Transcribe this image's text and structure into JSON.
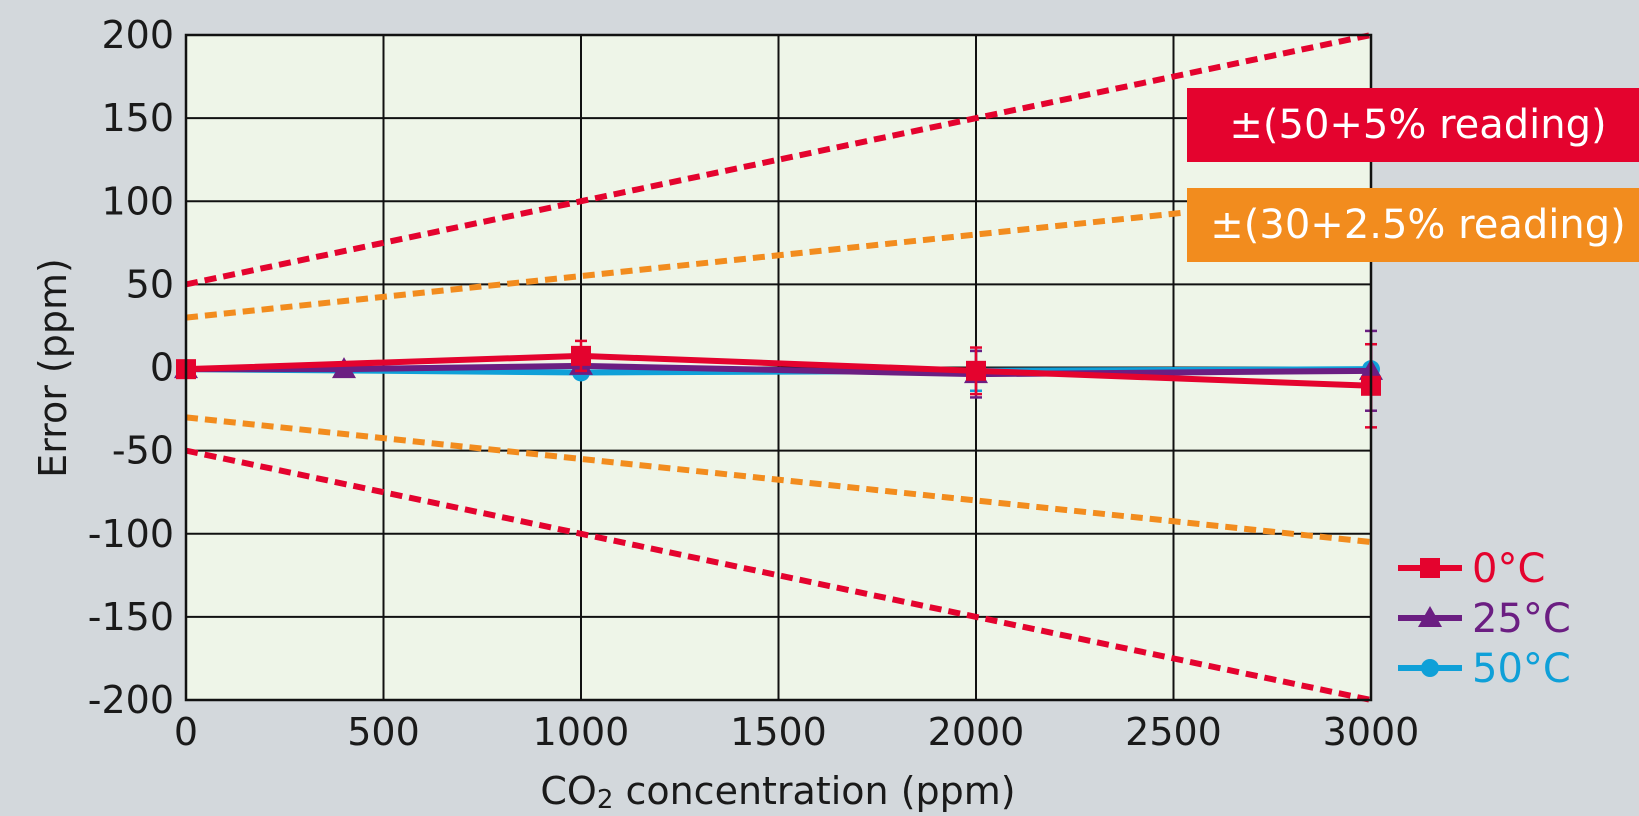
{
  "chart_data": {
    "type": "line",
    "xlabel_main": "CO",
    "xlabel_sub": "2",
    "xlabel_rest": " concentration (ppm)",
    "ylabel": "Error (ppm)",
    "xlim": [
      0,
      3000
    ],
    "ylim": [
      -200,
      200
    ],
    "xticks": [
      "0",
      "500",
      "1000",
      "1500",
      "2000",
      "2500",
      "3000"
    ],
    "yticks": [
      "200",
      "150",
      "100",
      "50",
      "0",
      "-50",
      "-100",
      "-150",
      "-200"
    ],
    "grid": true,
    "legend_position": "bottom-right",
    "series": [
      {
        "name": "0°C",
        "color": "#e4032e",
        "marker": "square",
        "x": [
          0,
          1000,
          2000,
          3000
        ],
        "y": [
          -1,
          7,
          -2,
          -11
        ],
        "err": [
          0,
          9,
          14,
          25
        ]
      },
      {
        "name": "25°C",
        "color": "#6b1e82",
        "marker": "triangle",
        "x": [
          0,
          400,
          1000,
          2000,
          3000
        ],
        "y": [
          -1,
          -1,
          1,
          -4,
          -2
        ],
        "err": [
          0,
          0,
          0,
          14,
          24
        ]
      },
      {
        "name": "50°C",
        "color": "#0fa0d8",
        "marker": "circle",
        "x": [
          0,
          1000,
          2000,
          3000
        ],
        "y": [
          -1,
          -3,
          -2,
          -1
        ],
        "err": [
          0,
          0,
          12,
          15
        ]
      }
    ],
    "tolerance_bands": [
      {
        "label": "±(50+5% reading)",
        "color": "#e4032e",
        "offset": 50,
        "percent": 5
      },
      {
        "label": "±(30+2.5% reading)",
        "color": "#f28c1e",
        "offset": 30,
        "percent": 2.5
      }
    ]
  }
}
